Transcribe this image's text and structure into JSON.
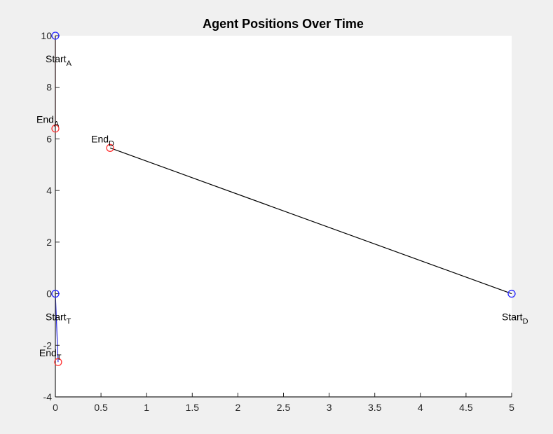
{
  "chart_data": {
    "type": "line",
    "title": "Agent Positions Over Time",
    "xlabel": "",
    "ylabel": "",
    "xlim": [
      0,
      5
    ],
    "ylim": [
      -4,
      10
    ],
    "xticks": [
      0,
      0.5,
      1,
      1.5,
      2,
      2.5,
      3,
      3.5,
      4,
      4.5,
      5
    ],
    "xtick_labels": [
      "0",
      "0.5",
      "1",
      "1.5",
      "2",
      "2.5",
      "3",
      "3.5",
      "4",
      "4.5",
      "5"
    ],
    "yticks": [
      -4,
      -2,
      0,
      2,
      4,
      6,
      8,
      10
    ],
    "ytick_labels": [
      "-4",
      "-2",
      "0",
      "2",
      "4",
      "6",
      "8",
      "10"
    ],
    "grid": false,
    "series": [
      {
        "key": "A",
        "color": "#e8414a",
        "x": [
          0,
          0
        ],
        "y": [
          10,
          6.4
        ],
        "start_label": {
          "base": "Start",
          "sub": "A"
        },
        "end_label": {
          "base": "End",
          "sub": "A"
        }
      },
      {
        "key": "D",
        "color": "#000000",
        "x": [
          5,
          0.6
        ],
        "y": [
          0,
          5.65
        ],
        "start_label": {
          "base": "Start",
          "sub": "D"
        },
        "end_label": {
          "base": "End",
          "sub": "D"
        }
      },
      {
        "key": "T",
        "color": "#2a2ae0",
        "x": [
          0,
          0.03
        ],
        "y": [
          0,
          -2.65
        ],
        "start_label": {
          "base": "Start",
          "sub": "T"
        },
        "end_label": {
          "base": "End",
          "sub": "T"
        }
      }
    ],
    "start_marker_color": "#2a2aff",
    "end_marker_color": "#ff3333"
  }
}
